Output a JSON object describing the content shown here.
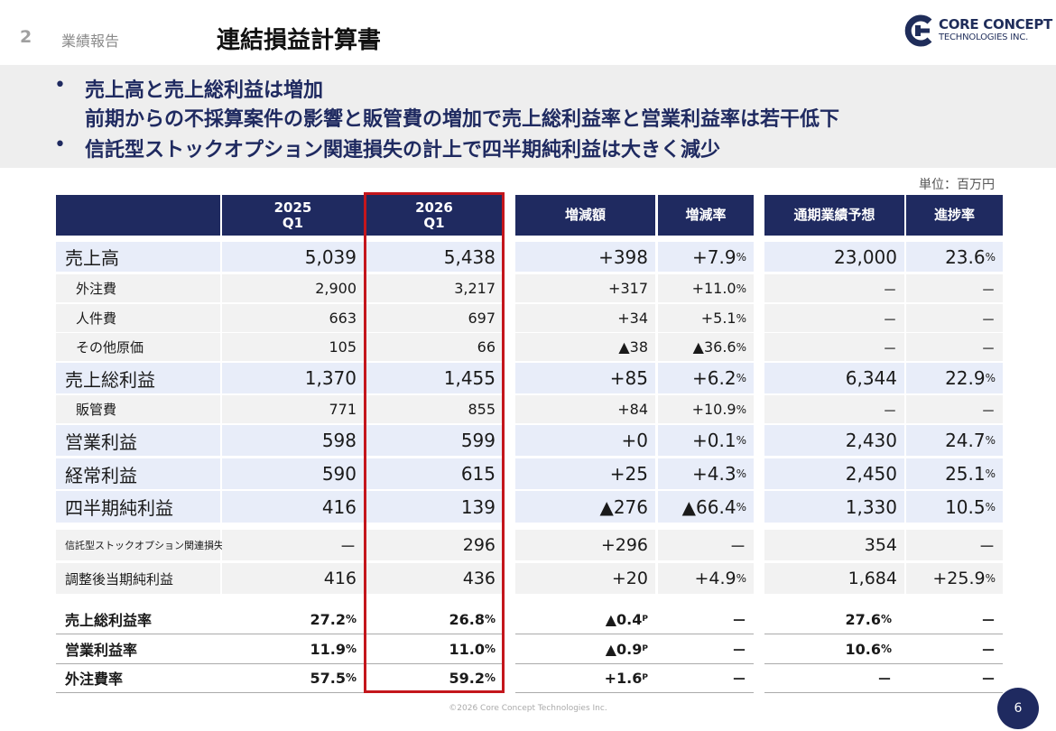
{
  "header": {
    "section_num": "2",
    "section_title": "業績報告",
    "page_title": "連結損益計算書",
    "logo_name": "CORE CONCEPT",
    "logo_sub": "TECHNOLOGIES INC."
  },
  "summary": {
    "bullet1_line1": "売上高と売上総利益は増加",
    "bullet1_line2": "前期からの不採算案件の影響と販管費の増加で売上総利益率と営業利益率は若干低下",
    "bullet2": "信託型ストックオプション関連損失の計上で四半期純利益は大きく減少",
    "bullet_char": "•"
  },
  "unit": "単位：百万円",
  "columns": {
    "y2025": "2025\nQ1",
    "y2026": "2026\nQ1",
    "diff": "増減額",
    "rate": "増減率",
    "forecast": "通期業績予想",
    "progress": "進捗率"
  },
  "rows": [
    {
      "label": "売上高",
      "v2025": "5,039",
      "v2026": "5,438",
      "diff": "+398",
      "rate": "+7.9",
      "rate_unit": "%",
      "forecast": "23,000",
      "progress": "23.6",
      "progress_unit": "%"
    },
    {
      "label": "外注費",
      "v2025": "2,900",
      "v2026": "3,217",
      "diff": "+317",
      "rate": "+11.0",
      "rate_unit": "%",
      "forecast": "－",
      "progress": "－",
      "progress_unit": ""
    },
    {
      "label": "人件費",
      "v2025": "663",
      "v2026": "697",
      "diff": "+34",
      "rate": "+5.1",
      "rate_unit": "%",
      "forecast": "－",
      "progress": "－",
      "progress_unit": ""
    },
    {
      "label": "その他原価",
      "v2025": "105",
      "v2026": "66",
      "diff": "▲38",
      "rate": "▲36.6",
      "rate_unit": "%",
      "forecast": "－",
      "progress": "－",
      "progress_unit": ""
    },
    {
      "label": "売上総利益",
      "v2025": "1,370",
      "v2026": "1,455",
      "diff": "+85",
      "rate": "+6.2",
      "rate_unit": "%",
      "forecast": "6,344",
      "progress": "22.9",
      "progress_unit": "%"
    },
    {
      "label": "販管費",
      "v2025": "771",
      "v2026": "855",
      "diff": "+84",
      "rate": "+10.9",
      "rate_unit": "%",
      "forecast": "－",
      "progress": "－",
      "progress_unit": ""
    },
    {
      "label": "営業利益",
      "v2025": "598",
      "v2026": "599",
      "diff": "+0",
      "rate": "+0.1",
      "rate_unit": "%",
      "forecast": "2,430",
      "progress": "24.7",
      "progress_unit": "%"
    },
    {
      "label": "経常利益",
      "v2025": "590",
      "v2026": "615",
      "diff": "+25",
      "rate": "+4.3",
      "rate_unit": "%",
      "forecast": "2,450",
      "progress": "25.1",
      "progress_unit": "%"
    },
    {
      "label": "四半期純利益",
      "v2025": "416",
      "v2026": "139",
      "diff": "▲276",
      "rate": "▲66.4",
      "rate_unit": "%",
      "forecast": "1,330",
      "progress": "10.5",
      "progress_unit": "%"
    },
    {
      "label": "信託型ストックオプション関連損失",
      "v2025": "－",
      "v2026": "296",
      "diff": "+296",
      "rate": "－",
      "rate_unit": "",
      "forecast": "354",
      "progress": "－",
      "progress_unit": ""
    },
    {
      "label": "調整後当期純利益",
      "v2025": "416",
      "v2026": "436",
      "diff": "+20",
      "rate": "+4.9",
      "rate_unit": "%",
      "forecast": "1,684",
      "progress": "+25.9",
      "progress_unit": "%"
    }
  ],
  "ratios": [
    {
      "label": "売上総利益率",
      "v2025": "27.2",
      "v2026": "26.8",
      "unit": "%",
      "diff": "▲0.4",
      "diff_unit": "P",
      "rate": "－",
      "forecast": "27.6",
      "forecast_unit": "%",
      "progress": "－"
    },
    {
      "label": "営業利益率",
      "v2025": "11.9",
      "v2026": "11.0",
      "unit": "%",
      "diff": "▲0.9",
      "diff_unit": "P",
      "rate": "－",
      "forecast": "10.6",
      "forecast_unit": "%",
      "progress": "－"
    },
    {
      "label": "外注費率",
      "v2025": "57.5",
      "v2026": "59.2",
      "unit": "%",
      "diff": "+1.6",
      "diff_unit": "P",
      "rate": "－",
      "forecast": "－",
      "forecast_unit": "",
      "progress": "－"
    }
  ],
  "footer": "©2026 Core Concept Technologies Inc.",
  "page_number": "6",
  "colors": {
    "navy": "#1f2a60",
    "highlight": "#e8edf9",
    "red": "#c4161c"
  }
}
